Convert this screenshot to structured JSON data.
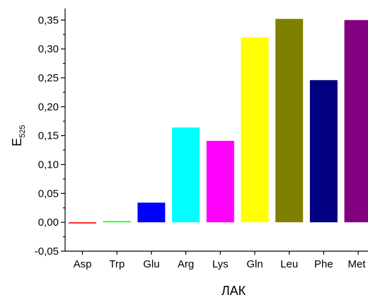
{
  "chart_data": {
    "type": "bar",
    "categories": [
      "Asp",
      "Trp",
      "Glu",
      "Arg",
      "Lys",
      "Gln",
      "Leu",
      "Phe",
      "Met"
    ],
    "values": [
      -0.002,
      0.002,
      0.034,
      0.164,
      0.141,
      0.32,
      0.352,
      0.246,
      0.35
    ],
    "colors": [
      "#ff0000",
      "#00ff00",
      "#0000ff",
      "#00ffff",
      "#ff00ff",
      "#ffff00",
      "#808000",
      "#000080",
      "#800080"
    ],
    "ylim": [
      -0.05,
      0.37
    ],
    "yticks": [
      -0.05,
      0.0,
      0.05,
      0.1,
      0.15,
      0.2,
      0.25,
      0.3,
      0.35
    ],
    "ytick_labels": [
      "-0,05",
      "0,00",
      "0,05",
      "0,10",
      "0,15",
      "0,20",
      "0,25",
      "0,30",
      "0,35"
    ],
    "xlabel": "ЛАК",
    "ylabel_main": "E",
    "ylabel_sub": "525",
    "grid": false
  }
}
